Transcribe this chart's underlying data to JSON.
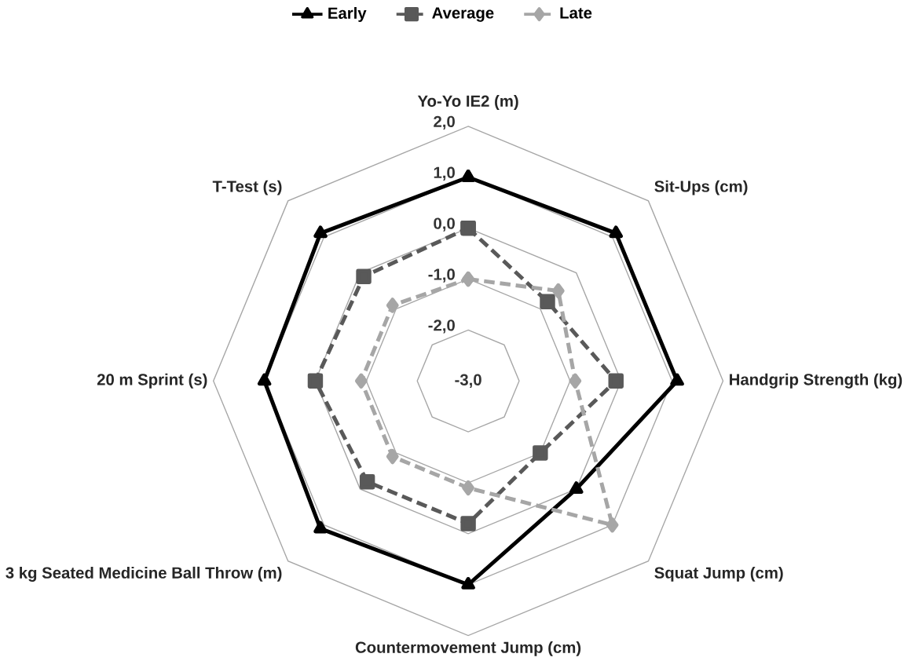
{
  "chart_data": {
    "type": "radar",
    "categories": [
      "Yo-Yo IE2 (m)",
      "Sit-Ups (cm)",
      "Handgrip Strength (kg)",
      "Squat Jump (cm)",
      "Countermovement Jump (cm)",
      "3 kg Seated Medicine Ball Throw (m)",
      "20 m Sprint (s)",
      "T-Test (s)"
    ],
    "series": [
      {
        "name": "Early",
        "color": "#000000",
        "marker": "triangle",
        "line_style": "solid",
        "values": [
          1.0,
          1.1,
          1.1,
          0.0,
          1.0,
          1.1,
          1.0,
          1.1
        ]
      },
      {
        "name": "Average",
        "color": "#595959",
        "marker": "square",
        "line_style": "dashed",
        "values": [
          0.0,
          -0.8,
          -0.1,
          -1.0,
          -0.2,
          -0.2,
          0.0,
          -0.1
        ]
      },
      {
        "name": "Late",
        "color": "#a6a6a6",
        "marker": "diamond",
        "line_style": "dashed",
        "values": [
          -1.0,
          -0.5,
          -0.9,
          1.0,
          -0.9,
          -0.9,
          -0.9,
          -0.9
        ]
      }
    ],
    "ylim": [
      -3,
      2
    ],
    "yticks": [
      {
        "value": -3,
        "label": "-3,0"
      },
      {
        "value": -2,
        "label": "-2,0"
      },
      {
        "value": -1,
        "label": "-1,0"
      },
      {
        "value": 0,
        "label": "0,0"
      },
      {
        "value": 1,
        "label": "1,0"
      },
      {
        "value": 2,
        "label": "2,0"
      }
    ],
    "grid": true,
    "legend": "top"
  }
}
